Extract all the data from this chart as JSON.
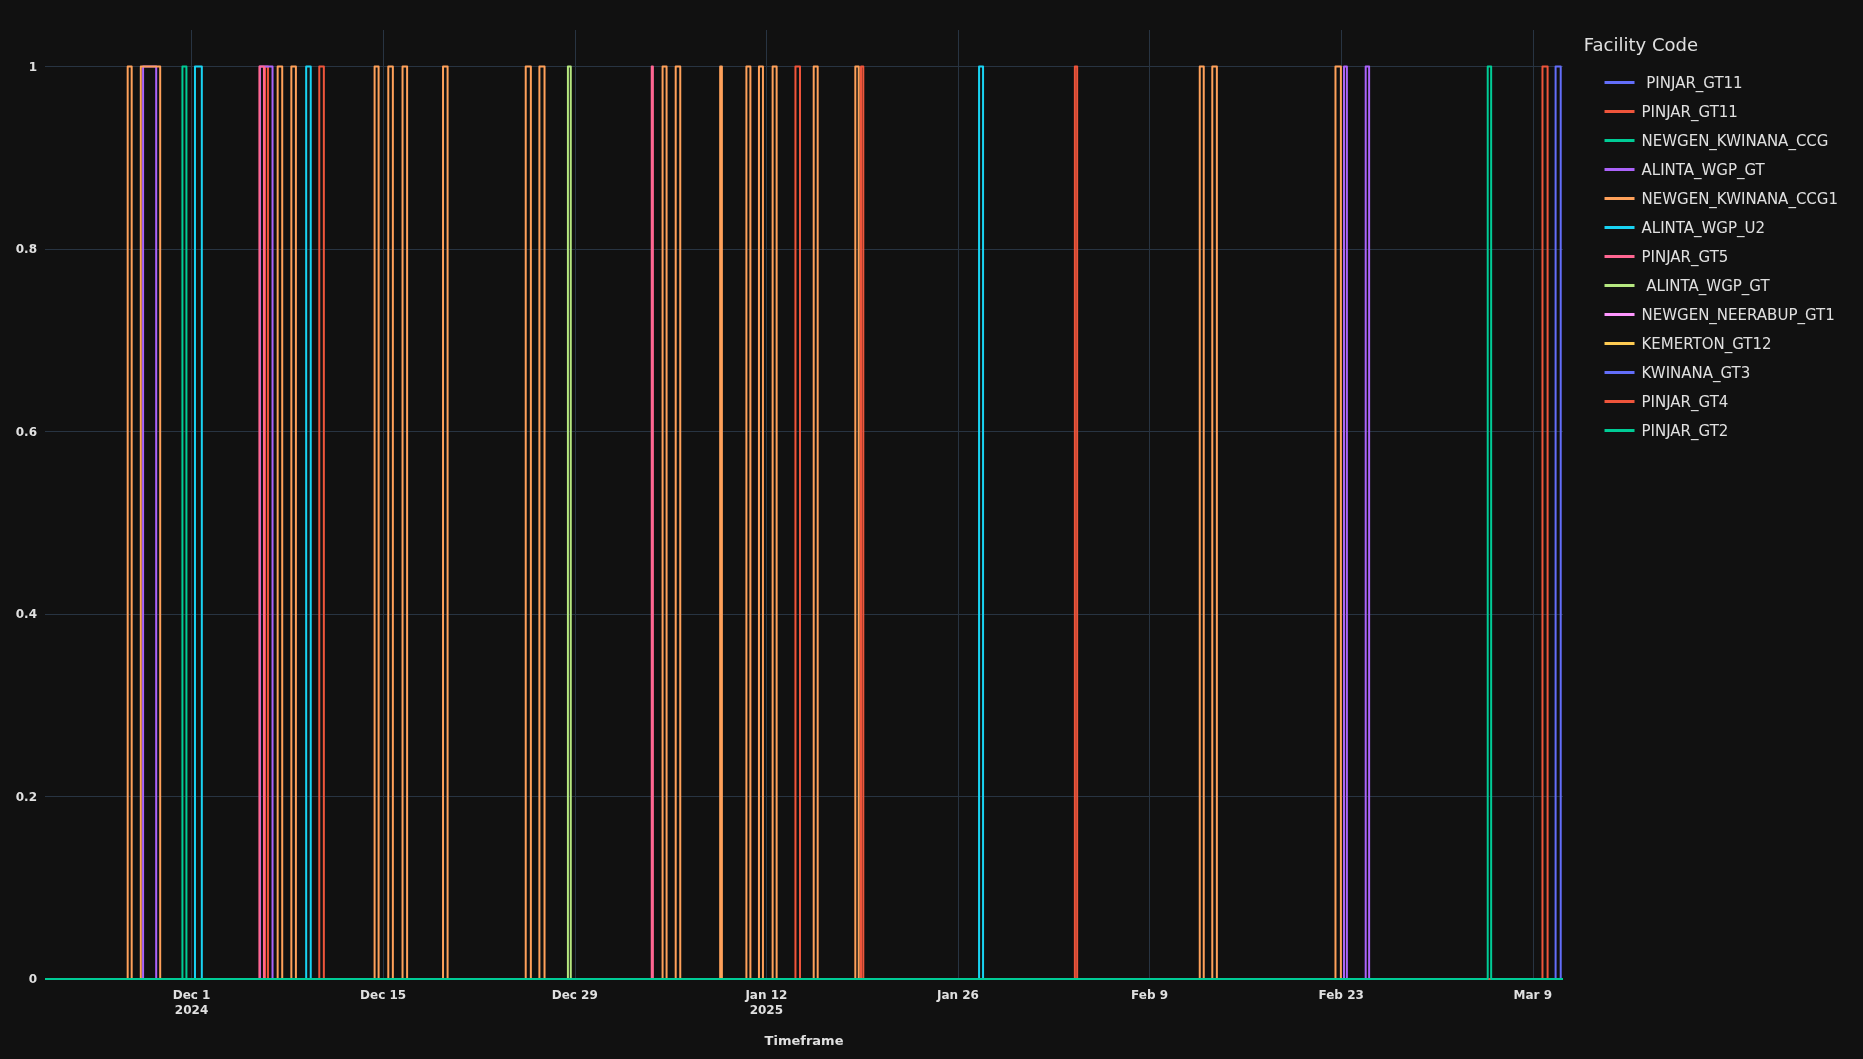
{
  "chart_data": {
    "type": "step",
    "xlabel": "Timeframe",
    "legend_title": "Facility Code",
    "legend": "right",
    "grid": true,
    "xlim": [
      "2024-11-20T07:00",
      "2025-03-11T05:00"
    ],
    "xticks": [
      {
        "value": "2024-12-01",
        "label": "Dec 1\n2024"
      },
      {
        "value": "2024-12-15",
        "label": "Dec 15"
      },
      {
        "value": "2024-12-29",
        "label": "Dec 29"
      },
      {
        "value": "2025-01-12",
        "label": "Jan 12\n2025"
      },
      {
        "value": "2025-01-26",
        "label": "Jan 26"
      },
      {
        "value": "2025-02-09",
        "label": "Feb 9"
      },
      {
        "value": "2025-02-23",
        "label": "Feb 23"
      },
      {
        "value": "2025-03-09",
        "label": "Mar 9"
      }
    ],
    "ylim": [
      0,
      1.04
    ],
    "yticks": [
      0,
      {
        "value": 0.2,
        "label": "0.2"
      },
      {
        "value": 0.4,
        "label": "0.4"
      },
      {
        "value": 0.6,
        "label": "0.6"
      },
      {
        "value": 0.8,
        "label": "0.8"
      },
      1
    ],
    "series": [
      {
        "name": " PINJAR_GT11",
        "color": "#636efa"
      },
      {
        "name": "PINJAR_GT11",
        "color": "#ef553b",
        "x": [
          "2024-11-20T07:00",
          "2024-12-06T09:00",
          "2024-12-06T14:00",
          "2024-12-10T08:00",
          "2024-12-10T16:00",
          "2025-01-14T03:00",
          "2025-01-14T11:00",
          "2025-01-18T22:00",
          "2025-01-19T02:00",
          "2025-02-03T13:00",
          "2025-02-03T17:00",
          "2025-03-11T05:00"
        ],
        "values": [
          0,
          1,
          0,
          1,
          0,
          1,
          0,
          1,
          0,
          1,
          0,
          0
        ]
      },
      {
        "name": "NEWGEN_KWINANA_CCG",
        "color": "#00cc96",
        "x": [
          "2024-11-20T07:00",
          "2024-11-30T08:00",
          "2024-11-30T15:00",
          "2025-03-11T05:00"
        ],
        "values": [
          0,
          1,
          0,
          0
        ]
      },
      {
        "name": "ALINTA_WGP_GT",
        "color": "#ab63fa",
        "x": [
          "2024-11-20T07:00",
          "2024-11-27T11:00",
          "2024-11-28T10:00",
          "2024-12-06T00:00",
          "2024-12-06T22:00",
          "2025-02-23T05:00",
          "2025-02-23T10:00",
          "2025-02-24T19:00",
          "2025-02-25T01:00",
          "2025-03-11T05:00"
        ],
        "values": [
          0,
          1,
          0,
          1,
          0,
          1,
          0,
          1,
          0,
          0
        ]
      },
      {
        "name": "NEWGEN_KWINANA_CCG1",
        "color": "#ffa15a",
        "x": [
          "2024-11-20T07:00",
          "2024-11-26T08:00",
          "2024-11-26T15:00",
          "2024-11-27T07:00",
          "2024-11-28T17:00",
          "2024-12-07T07:00",
          "2024-12-07T15:00",
          "2024-12-08T07:00",
          "2024-12-08T15:00",
          "2024-12-14T09:00",
          "2024-12-14T16:00",
          "2024-12-15T09:00",
          "2024-12-15T17:00",
          "2024-12-16T10:00",
          "2024-12-16T18:00",
          "2024-12-19T09:00",
          "2024-12-19T17:00",
          "2024-12-25T10:00",
          "2024-12-25T19:00",
          "2024-12-26T10:00",
          "2024-12-26T19:00",
          "2025-01-04T10:00",
          "2025-01-04T17:00",
          "2025-01-05T09:00",
          "2025-01-05T17:00",
          "2025-01-08T15:00",
          "2025-01-08T18:00",
          "2025-01-10T13:00",
          "2025-01-10T20:00",
          "2025-01-11T11:00",
          "2025-01-11T18:00",
          "2025-01-12T11:00",
          "2025-01-12T18:00",
          "2025-01-15T11:00",
          "2025-01-15T18:00",
          "2025-01-18T12:00",
          "2025-01-18T18:00",
          "2025-02-12T16:00",
          "2025-02-12T23:00",
          "2025-02-13T14:00",
          "2025-02-13T22:00",
          "2025-02-22T14:00",
          "2025-02-22T23:30",
          "2025-03-11T05:00"
        ],
        "values": [
          0,
          1,
          0,
          1,
          0,
          1,
          0,
          1,
          0,
          1,
          0,
          1,
          0,
          1,
          0,
          1,
          0,
          1,
          0,
          1,
          0,
          1,
          0,
          1,
          0,
          1,
          0,
          1,
          0,
          1,
          0,
          1,
          0,
          1,
          0,
          1,
          0,
          1,
          0,
          1,
          0,
          1,
          0,
          0
        ]
      },
      {
        "name": "ALINTA_WGP_U2",
        "color": "#19d3f3",
        "x": [
          "2024-11-20T07:00",
          "2024-12-01T06:00",
          "2024-12-01T18:00",
          "2024-12-09T09:00",
          "2024-12-09T17:00",
          "2025-01-27T13:00",
          "2025-01-27T20:00",
          "2025-03-11T05:00"
        ],
        "values": [
          0,
          1,
          0,
          1,
          0,
          1,
          0,
          0
        ]
      },
      {
        "name": "PINJAR_GT5",
        "color": "#ff6692",
        "x": [
          "2024-11-20T07:00",
          "2024-12-05T23:00",
          "2024-12-06T07:00",
          "2025-01-03T15:00",
          "2025-01-03T17:00",
          "2025-03-11T05:00"
        ],
        "values": [
          0,
          1,
          0,
          1,
          0,
          0
        ]
      },
      {
        "name": " ALINTA_WGP_GT",
        "color": "#b6e880",
        "x": [
          "2024-11-20T07:00",
          "2024-12-28T12:00",
          "2024-12-28T17:00",
          "2025-03-11T05:00"
        ],
        "values": [
          0,
          1,
          0,
          0
        ]
      },
      {
        "name": "NEWGEN_NEERABUP_GT1",
        "color": "#ff97ff"
      },
      {
        "name": "KEMERTON_GT12",
        "color": "#fecb52"
      },
      {
        "name": "KWINANA_GT3",
        "color": "#636efa",
        "x": [
          "2024-11-20T07:00",
          "2025-03-10T16:00",
          "2025-03-11T01:00",
          "2025-03-11T05:00"
        ],
        "values": [
          0,
          1,
          0,
          0
        ]
      },
      {
        "name": "PINJAR_GT4",
        "color": "#ef553b",
        "x": [
          "2024-11-20T07:00",
          "2025-03-09T17:00",
          "2025-03-10T02:00",
          "2025-03-11T05:00"
        ],
        "values": [
          0,
          1,
          0,
          0
        ]
      },
      {
        "name": "PINJAR_GT2",
        "color": "#00cc96",
        "x": [
          "2024-11-20T07:00",
          "2025-03-05T17:00",
          "2025-03-05T23:00",
          "2025-03-11T05:00"
        ],
        "values": [
          0,
          1,
          0,
          0
        ]
      }
    ]
  }
}
